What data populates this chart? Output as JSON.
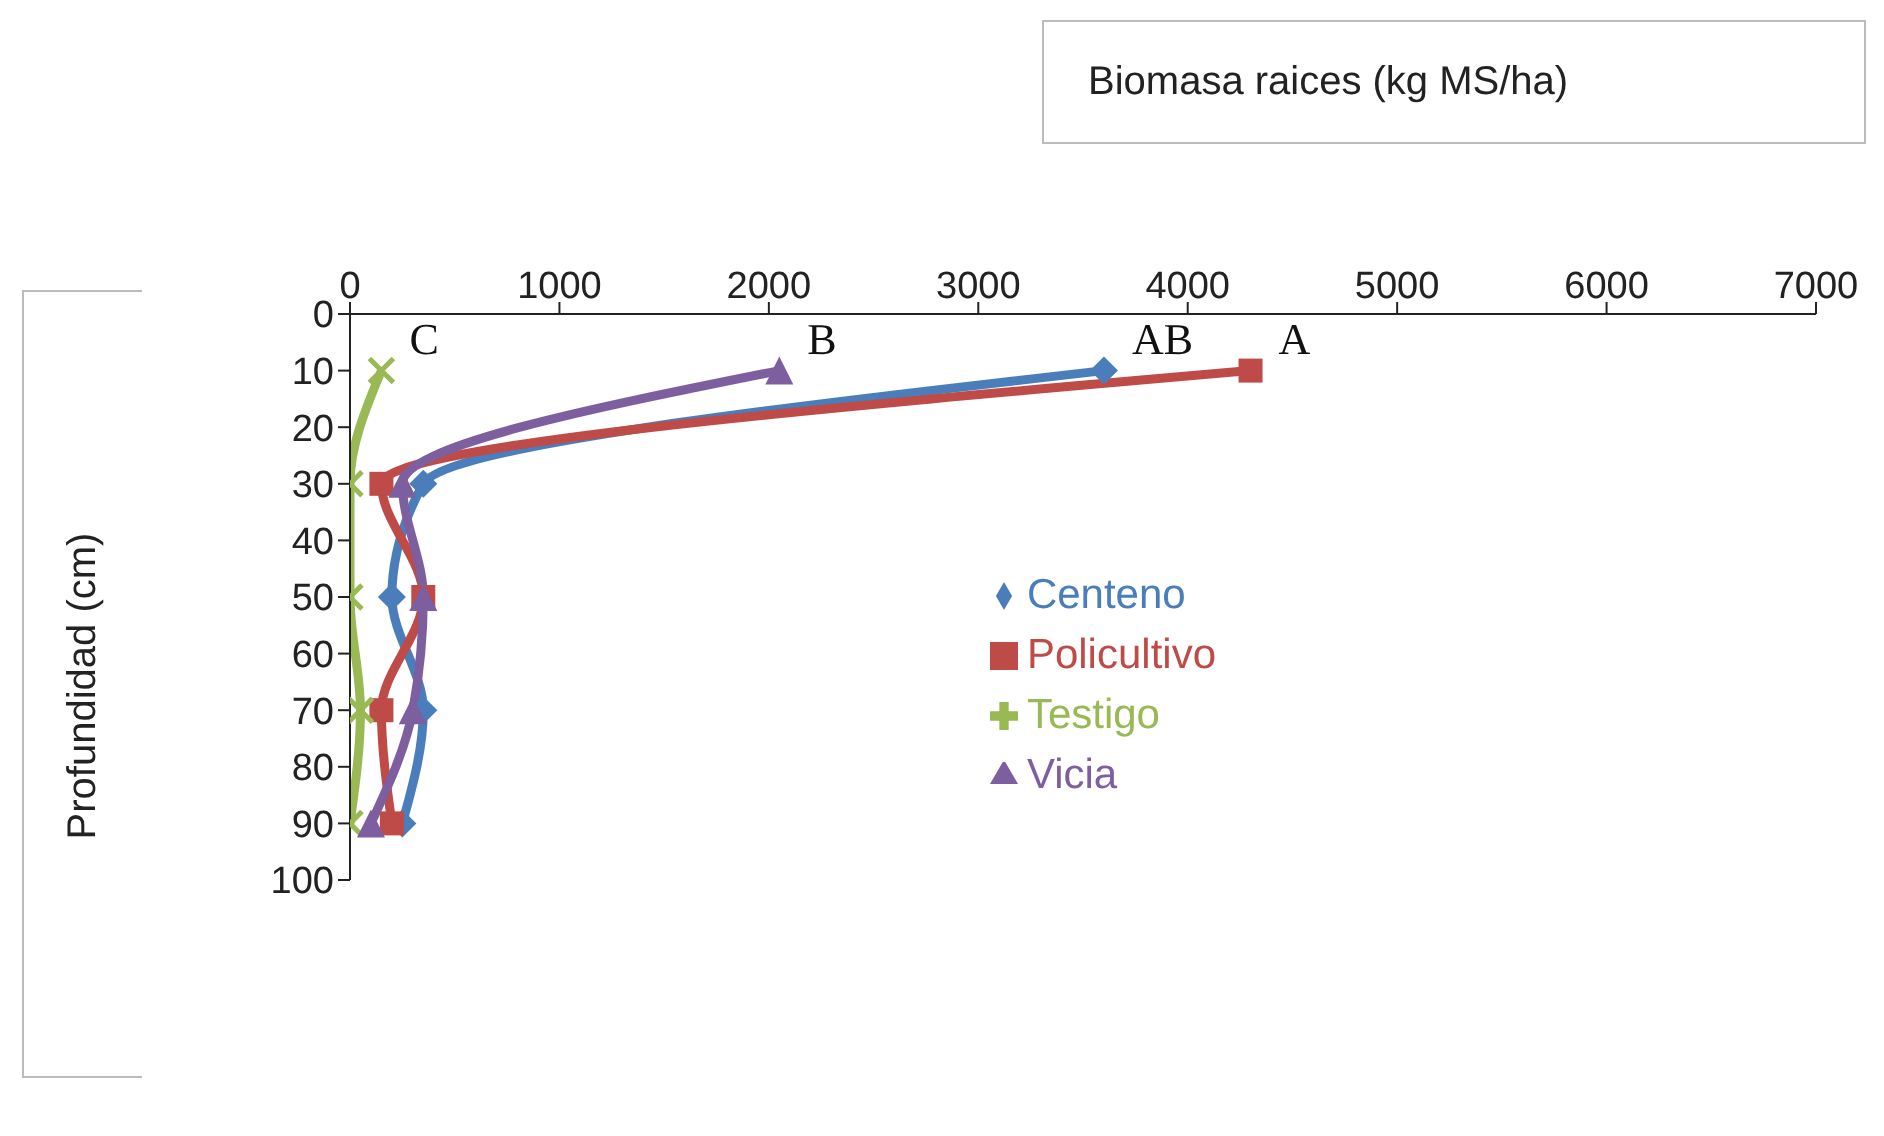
{
  "chart_data": {
    "type": "line",
    "orientation": "horizontal",
    "xlabel": "Biomasa raices (kg MS/ha)",
    "ylabel": "Profundidad (cm)",
    "x": [
      10,
      30,
      50,
      70,
      90
    ],
    "xlim": [
      0,
      7000
    ],
    "xticks": [
      0,
      1000,
      2000,
      3000,
      4000,
      5000,
      6000,
      7000
    ],
    "ylim": [
      100,
      0
    ],
    "yticks": [
      0,
      10,
      20,
      30,
      40,
      50,
      60,
      70,
      80,
      90,
      100
    ],
    "grid": false,
    "legend": "right",
    "series": [
      {
        "name": "Centeno",
        "color": "#4a7ebb",
        "marker": "diamond",
        "values": [
          3600,
          350,
          200,
          350,
          250
        ]
      },
      {
        "name": "Policultivo",
        "color": "#be4b48",
        "marker": "square",
        "values": [
          4300,
          150,
          350,
          150,
          200
        ]
      },
      {
        "name": "Testigo",
        "color": "#98b954",
        "marker": "cross",
        "values": [
          150,
          0,
          0,
          50,
          0
        ]
      },
      {
        "name": "Vicia",
        "color": "#7d5fa0",
        "marker": "triangle",
        "values": [
          2050,
          250,
          350,
          300,
          100
        ]
      }
    ],
    "annotations": [
      {
        "text": "C",
        "x": 150,
        "y": 10
      },
      {
        "text": "B",
        "x": 2050,
        "y": 10
      },
      {
        "text": "AB",
        "x": 3600,
        "y": 10
      },
      {
        "text": "A",
        "x": 4300,
        "y": 10
      }
    ]
  }
}
